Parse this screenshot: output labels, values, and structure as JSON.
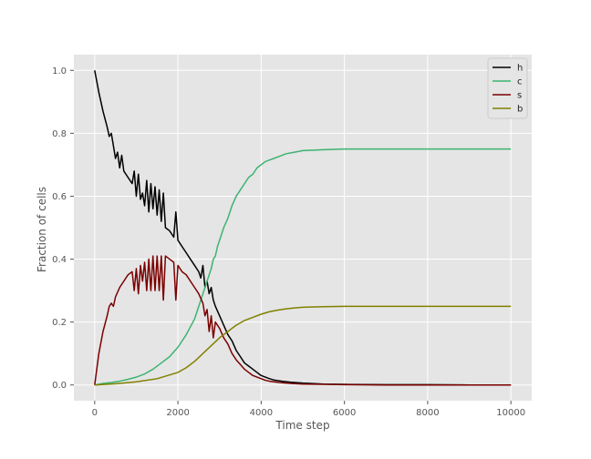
{
  "chart_data": {
    "type": "line",
    "title": "",
    "xlabel": "Time step",
    "ylabel": "Fraction of cells",
    "xlim": [
      -500,
      10500
    ],
    "ylim": [
      -0.05,
      1.05
    ],
    "xticks": [
      0,
      2000,
      4000,
      6000,
      8000,
      10000
    ],
    "yticks": [
      0.0,
      0.2,
      0.4,
      0.6,
      0.8,
      1.0
    ],
    "grid": true,
    "legend_position": "top-right",
    "colors": {
      "background": "#e5e5e5",
      "grid": "#ffffff"
    },
    "series": [
      {
        "name": "h",
        "color": "#000000",
        "x": [
          0,
          100,
          200,
          300,
          350,
          400,
          450,
          500,
          550,
          600,
          650,
          700,
          800,
          900,
          950,
          1000,
          1050,
          1100,
          1150,
          1200,
          1250,
          1300,
          1350,
          1400,
          1450,
          1500,
          1550,
          1600,
          1650,
          1700,
          1800,
          1900,
          1950,
          2000,
          2100,
          2200,
          2300,
          2400,
          2500,
          2550,
          2600,
          2650,
          2700,
          2750,
          2800,
          2850,
          2900,
          3000,
          3100,
          3200,
          3300,
          3400,
          3500,
          3600,
          3700,
          3800,
          3900,
          4000,
          4100,
          4200,
          4300,
          4500,
          4700,
          5000,
          5500,
          6000,
          7000,
          8000,
          9000,
          10000
        ],
        "y": [
          1.0,
          0.93,
          0.87,
          0.82,
          0.79,
          0.8,
          0.76,
          0.72,
          0.74,
          0.69,
          0.73,
          0.68,
          0.66,
          0.64,
          0.68,
          0.6,
          0.67,
          0.59,
          0.61,
          0.57,
          0.65,
          0.55,
          0.64,
          0.56,
          0.63,
          0.54,
          0.62,
          0.52,
          0.61,
          0.5,
          0.49,
          0.47,
          0.55,
          0.46,
          0.44,
          0.42,
          0.4,
          0.38,
          0.36,
          0.34,
          0.38,
          0.31,
          0.33,
          0.29,
          0.31,
          0.27,
          0.25,
          0.22,
          0.19,
          0.16,
          0.14,
          0.11,
          0.09,
          0.07,
          0.06,
          0.05,
          0.04,
          0.03,
          0.025,
          0.02,
          0.016,
          0.012,
          0.009,
          0.006,
          0.003,
          0.002,
          0.001,
          0.001,
          0.0,
          0.0
        ]
      },
      {
        "name": "c",
        "color": "#3cb371",
        "x": [
          0,
          200,
          400,
          600,
          800,
          1000,
          1200,
          1400,
          1600,
          1800,
          2000,
          2200,
          2400,
          2500,
          2600,
          2700,
          2800,
          2850,
          2900,
          2950,
          3000,
          3100,
          3200,
          3300,
          3400,
          3500,
          3600,
          3700,
          3800,
          3900,
          4000,
          4100,
          4200,
          4300,
          4400,
          4500,
          4600,
          4800,
          5000,
          5500,
          6000,
          7000,
          8000,
          9000,
          10000
        ],
        "y": [
          0.0,
          0.005,
          0.008,
          0.012,
          0.018,
          0.025,
          0.035,
          0.05,
          0.07,
          0.09,
          0.12,
          0.16,
          0.21,
          0.25,
          0.29,
          0.33,
          0.37,
          0.4,
          0.41,
          0.44,
          0.46,
          0.5,
          0.53,
          0.57,
          0.6,
          0.62,
          0.64,
          0.66,
          0.67,
          0.69,
          0.7,
          0.71,
          0.715,
          0.72,
          0.725,
          0.73,
          0.735,
          0.74,
          0.745,
          0.748,
          0.75,
          0.75,
          0.75,
          0.75,
          0.75
        ]
      },
      {
        "name": "s",
        "color": "#7b0000",
        "x": [
          0,
          100,
          200,
          300,
          350,
          400,
          450,
          500,
          600,
          700,
          800,
          900,
          950,
          1000,
          1050,
          1100,
          1150,
          1200,
          1250,
          1300,
          1350,
          1400,
          1450,
          1500,
          1550,
          1600,
          1650,
          1700,
          1800,
          1900,
          1950,
          2000,
          2100,
          2200,
          2300,
          2400,
          2500,
          2600,
          2650,
          2700,
          2750,
          2800,
          2850,
          2900,
          3000,
          3100,
          3200,
          3300,
          3400,
          3500,
          3600,
          3700,
          3800,
          3900,
          4000,
          4100,
          4200,
          4300,
          4500,
          4700,
          5000,
          5500,
          6000,
          7000,
          8000,
          9000,
          10000
        ],
        "y": [
          0.0,
          0.1,
          0.17,
          0.22,
          0.25,
          0.26,
          0.25,
          0.28,
          0.31,
          0.33,
          0.35,
          0.36,
          0.3,
          0.37,
          0.29,
          0.38,
          0.33,
          0.39,
          0.3,
          0.4,
          0.3,
          0.41,
          0.3,
          0.41,
          0.3,
          0.41,
          0.27,
          0.41,
          0.4,
          0.39,
          0.27,
          0.38,
          0.36,
          0.35,
          0.33,
          0.31,
          0.29,
          0.26,
          0.22,
          0.24,
          0.17,
          0.22,
          0.15,
          0.2,
          0.18,
          0.15,
          0.13,
          0.1,
          0.08,
          0.065,
          0.05,
          0.04,
          0.03,
          0.025,
          0.02,
          0.015,
          0.012,
          0.01,
          0.007,
          0.005,
          0.003,
          0.002,
          0.001,
          0.0,
          0.0,
          0.0,
          0.0
        ]
      },
      {
        "name": "b",
        "color": "#808000",
        "x": [
          0,
          500,
          1000,
          1500,
          2000,
          2200,
          2400,
          2600,
          2800,
          3000,
          3200,
          3400,
          3600,
          3800,
          4000,
          4200,
          4400,
          4600,
          4800,
          5000,
          5500,
          6000,
          7000,
          8000,
          9000,
          10000
        ],
        "y": [
          0.0,
          0.004,
          0.01,
          0.02,
          0.04,
          0.055,
          0.075,
          0.1,
          0.125,
          0.15,
          0.17,
          0.19,
          0.205,
          0.215,
          0.225,
          0.233,
          0.238,
          0.242,
          0.245,
          0.247,
          0.249,
          0.25,
          0.25,
          0.25,
          0.25,
          0.25
        ]
      }
    ]
  }
}
